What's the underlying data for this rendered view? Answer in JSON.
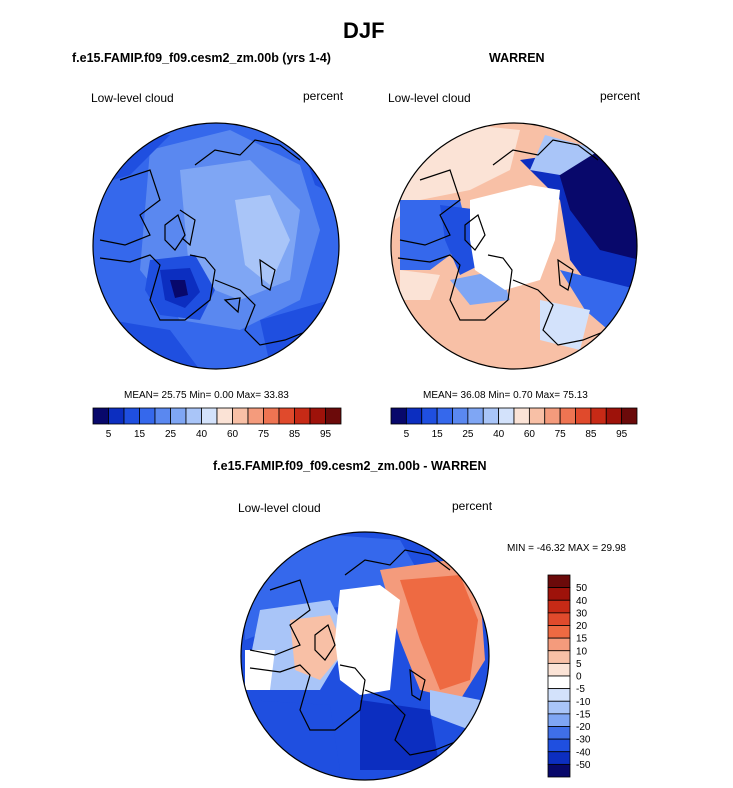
{
  "page": {
    "title": "DJF",
    "panel_left_title": "f.e15.FAMIP.f09_f09.cesm2_zm.00b (yrs 1-4)",
    "panel_right_title": "WARREN",
    "panel_diff_title": "f.e15.FAMIP.f09_f09.cesm2_zm.00b - WARREN"
  },
  "chart_data": [
    {
      "type": "heatmap",
      "projection": "north-polar-stereographic",
      "title": "f.e15.FAMIP.f09_f09.cesm2_zm.00b (yrs 1-4)",
      "variable": "Low-level cloud",
      "units": "percent",
      "stats": {
        "mean": "25.75",
        "min": "0.00",
        "max": "33.83"
      },
      "stats_text": {
        "mean_label": "MEAN=",
        "min_label": "Min=",
        "max_label": "Max="
      },
      "colorbar": {
        "levels": [
          5,
          10,
          15,
          20,
          25,
          30,
          40,
          50,
          60,
          70,
          75,
          80,
          85,
          90,
          95
        ],
        "tick_labels": [
          "5",
          "15",
          "25",
          "40",
          "60",
          "75",
          "85",
          "95"
        ],
        "colors": [
          "#08086b",
          "#0c2ec0",
          "#1f4fe0",
          "#3568ec",
          "#5a88f0",
          "#7fa6f4",
          "#a9c5f8",
          "#d3e2fb",
          "#fbe3d6",
          "#f8c0a6",
          "#f49b7c",
          "#ee7452",
          "#e04a2c",
          "#c72a16",
          "#9e120a",
          "#6b0a0a"
        ]
      }
    },
    {
      "type": "heatmap",
      "projection": "north-polar-stereographic",
      "title": "WARREN",
      "variable": "Low-level cloud",
      "units": "percent",
      "stats": {
        "mean": "36.08",
        "min": "0.70",
        "max": "75.13"
      },
      "stats_text": {
        "mean_label": "MEAN=",
        "min_label": "Min=",
        "max_label": "Max="
      },
      "colorbar": {
        "levels": [
          5,
          10,
          15,
          20,
          25,
          30,
          40,
          50,
          60,
          70,
          75,
          80,
          85,
          90,
          95
        ],
        "tick_labels": [
          "5",
          "15",
          "25",
          "40",
          "60",
          "75",
          "85",
          "95"
        ],
        "colors": [
          "#08086b",
          "#0c2ec0",
          "#1f4fe0",
          "#3568ec",
          "#5a88f0",
          "#7fa6f4",
          "#a9c5f8",
          "#d3e2fb",
          "#fbe3d6",
          "#f8c0a6",
          "#f49b7c",
          "#ee7452",
          "#e04a2c",
          "#c72a16",
          "#9e120a",
          "#6b0a0a"
        ]
      }
    },
    {
      "type": "heatmap",
      "projection": "north-polar-stereographic",
      "title": "f.e15.FAMIP.f09_f09.cesm2_zm.00b - WARREN",
      "variable": "Low-level cloud",
      "units": "percent",
      "stats_line": "MIN = -46.32 MAX =  29.98",
      "stats": {
        "min": "-46.32",
        "max": "29.98"
      },
      "colorbar": {
        "orientation": "vertical",
        "tick_labels": [
          "50",
          "40",
          "30",
          "20",
          "15",
          "10",
          "5",
          "0",
          "-5",
          "-10",
          "-15",
          "-20",
          "-30",
          "-40",
          "-50"
        ],
        "colors": [
          "#6b0a0a",
          "#9e120a",
          "#c72a16",
          "#e04a2c",
          "#ee6a42",
          "#f49b7c",
          "#f8c0a6",
          "#fbe3d6",
          "#ffffff",
          "#d3e2fb",
          "#a9c5f8",
          "#7fa6f4",
          "#3f6fe8",
          "#1f4fe0",
          "#0c2ec0",
          "#08086b"
        ]
      }
    }
  ]
}
